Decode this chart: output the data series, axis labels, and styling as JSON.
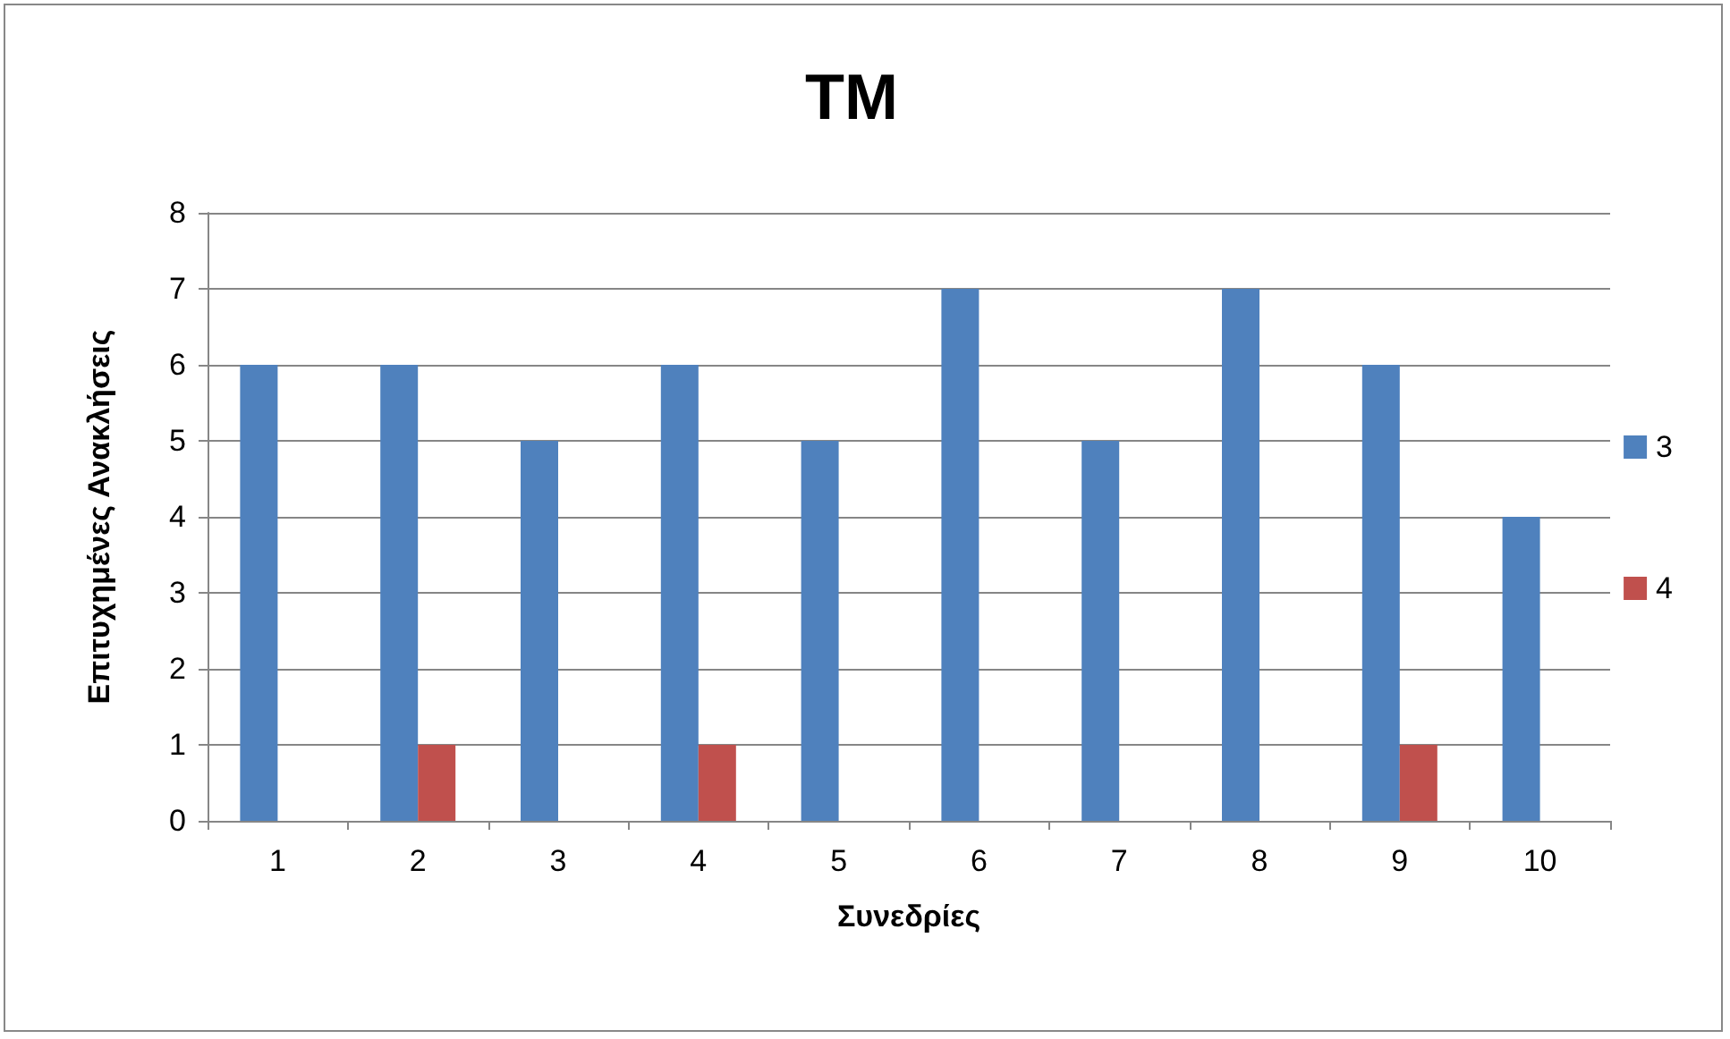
{
  "chart_data": {
    "type": "bar",
    "title": "TM",
    "xlabel": "Συνεδρίες",
    "ylabel": "Επιτυχημένες Ανακλήσεις",
    "categories": [
      "1",
      "2",
      "3",
      "4",
      "5",
      "6",
      "7",
      "8",
      "9",
      "10"
    ],
    "series": [
      {
        "name": "3",
        "color": "#4f81bd",
        "values": [
          6,
          6,
          5,
          6,
          5,
          7,
          5,
          7,
          6,
          4
        ]
      },
      {
        "name": "4",
        "color": "#c0504d",
        "values": [
          0,
          1,
          0,
          1,
          0,
          0,
          0,
          0,
          1,
          0
        ]
      }
    ],
    "ylim": [
      0,
      8
    ],
    "yticks": [
      0,
      1,
      2,
      3,
      4,
      5,
      6,
      7,
      8
    ],
    "grid": "y",
    "legend": "right"
  }
}
